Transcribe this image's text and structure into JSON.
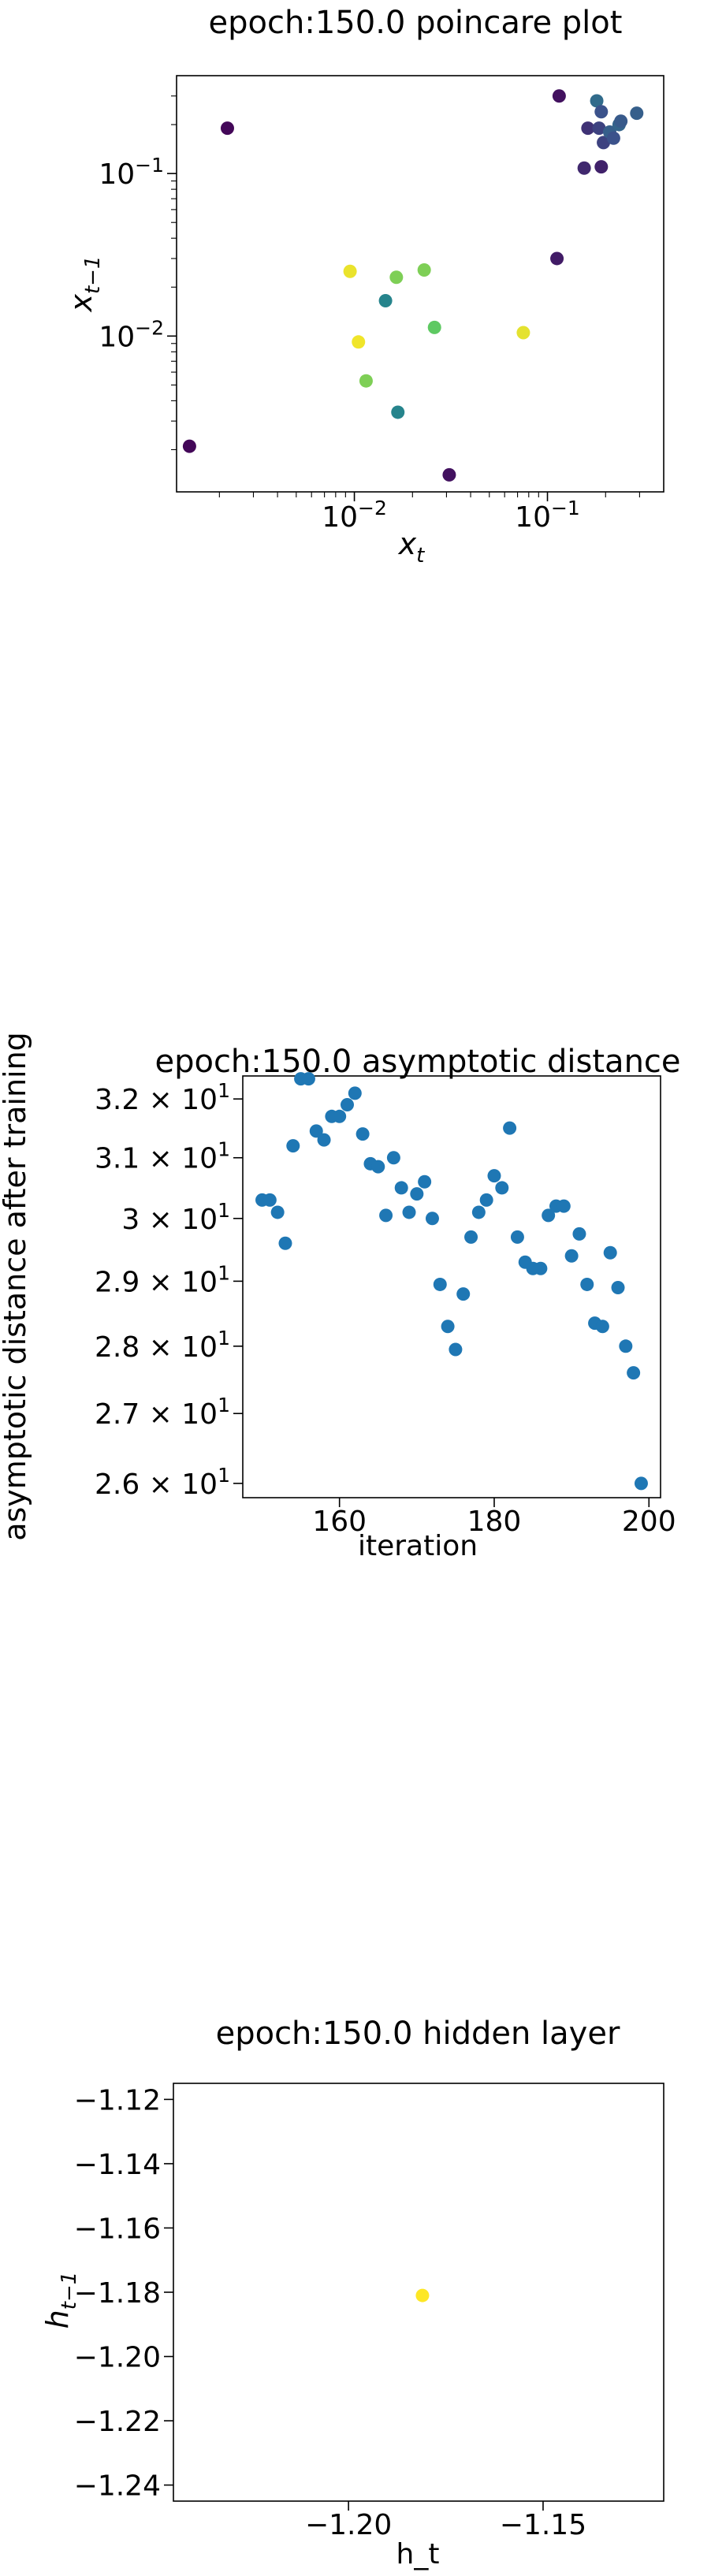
{
  "chart_data": [
    {
      "type": "scatter",
      "title": "epoch:150.0 poincare plot",
      "xlabel": "x",
      "xlabel_sub": "t",
      "ylabel": "x",
      "ylabel_sub": "t−1",
      "xscale": "log",
      "yscale": "log",
      "xlim": [
        0.0012,
        0.4
      ],
      "ylim": [
        0.0011,
        0.4
      ],
      "xticks": [
        {
          "value": 0.01,
          "base": "10",
          "exp": "−2"
        },
        {
          "value": 0.1,
          "base": "10",
          "exp": "−1"
        }
      ],
      "yticks": [
        {
          "value": 0.01,
          "base": "10",
          "exp": "−2"
        },
        {
          "value": 0.1,
          "base": "10",
          "exp": "−1"
        }
      ],
      "colormap": "viridis",
      "points": [
        {
          "x": 0.0014,
          "y": 0.0021,
          "c": 0.02
        },
        {
          "x": 0.0022,
          "y": 0.19,
          "c": 0.02
        },
        {
          "x": 0.0095,
          "y": 0.025,
          "c": 0.97
        },
        {
          "x": 0.0105,
          "y": 0.0092,
          "c": 0.98
        },
        {
          "x": 0.0115,
          "y": 0.0053,
          "c": 0.8
        },
        {
          "x": 0.0145,
          "y": 0.0165,
          "c": 0.45
        },
        {
          "x": 0.0165,
          "y": 0.023,
          "c": 0.8
        },
        {
          "x": 0.0168,
          "y": 0.0034,
          "c": 0.45
        },
        {
          "x": 0.023,
          "y": 0.0255,
          "c": 0.8
        },
        {
          "x": 0.026,
          "y": 0.0113,
          "c": 0.75
        },
        {
          "x": 0.031,
          "y": 0.0014,
          "c": 0.05
        },
        {
          "x": 0.075,
          "y": 0.0105,
          "c": 0.96
        },
        {
          "x": 0.112,
          "y": 0.03,
          "c": 0.08
        },
        {
          "x": 0.115,
          "y": 0.3,
          "c": 0.05
        },
        {
          "x": 0.155,
          "y": 0.108,
          "c": 0.12
        },
        {
          "x": 0.162,
          "y": 0.19,
          "c": 0.15
        },
        {
          "x": 0.18,
          "y": 0.28,
          "c": 0.35
        },
        {
          "x": 0.185,
          "y": 0.19,
          "c": 0.2
        },
        {
          "x": 0.19,
          "y": 0.11,
          "c": 0.1
        },
        {
          "x": 0.19,
          "y": 0.24,
          "c": 0.25
        },
        {
          "x": 0.195,
          "y": 0.155,
          "c": 0.2
        },
        {
          "x": 0.21,
          "y": 0.18,
          "c": 0.3
        },
        {
          "x": 0.22,
          "y": 0.165,
          "c": 0.25
        },
        {
          "x": 0.235,
          "y": 0.2,
          "c": 0.32
        },
        {
          "x": 0.24,
          "y": 0.21,
          "c": 0.28
        },
        {
          "x": 0.29,
          "y": 0.235,
          "c": 0.3
        }
      ]
    },
    {
      "type": "scatter",
      "title": "epoch:150.0 asymptotic distance",
      "xlabel": "iteration",
      "ylabel": "asymptotic distance after training",
      "yscale": "log",
      "xlim": [
        147.5,
        201.5
      ],
      "ylim": [
        25.8,
        32.4
      ],
      "xticks": [
        160,
        180,
        200
      ],
      "yticks": [
        {
          "value": 26,
          "mant": "2.6",
          "base": "10",
          "exp": "1"
        },
        {
          "value": 27,
          "mant": "2.7",
          "base": "10",
          "exp": "1"
        },
        {
          "value": 28,
          "mant": "2.8",
          "base": "10",
          "exp": "1"
        },
        {
          "value": 29,
          "mant": "2.9",
          "base": "10",
          "exp": "1"
        },
        {
          "value": 30,
          "mant": "3",
          "base": "10",
          "exp": "1"
        },
        {
          "value": 31,
          "mant": "3.1",
          "base": "10",
          "exp": "1"
        },
        {
          "value": 32,
          "mant": "3.2",
          "base": "10",
          "exp": "1"
        }
      ],
      "color": "#1f77b4",
      "x": [
        150,
        151,
        152,
        153,
        154,
        155,
        156,
        157,
        158,
        159,
        160,
        161,
        162,
        163,
        164,
        165,
        166,
        167,
        168,
        169,
        170,
        171,
        172,
        173,
        174,
        175,
        176,
        177,
        178,
        179,
        180,
        181,
        182,
        183,
        184,
        185,
        186,
        187,
        188,
        189,
        190,
        191,
        192,
        193,
        194,
        195,
        196,
        197,
        198,
        199
      ],
      "y": [
        30.3,
        30.3,
        30.1,
        29.6,
        31.2,
        32.35,
        32.35,
        31.45,
        31.3,
        31.7,
        31.7,
        31.9,
        32.1,
        31.4,
        30.9,
        30.85,
        30.05,
        31.0,
        30.5,
        30.1,
        30.4,
        30.6,
        30.0,
        28.95,
        28.3,
        27.95,
        28.8,
        29.7,
        30.1,
        30.3,
        30.7,
        30.5,
        31.5,
        29.7,
        29.3,
        29.2,
        29.2,
        30.05,
        30.2,
        30.2,
        29.4,
        29.75,
        28.95,
        28.35,
        28.3,
        29.45,
        28.9,
        28.0,
        27.6,
        26.0
      ]
    },
    {
      "type": "scatter",
      "title": "epoch:150.0 hidden layer",
      "xlabel": "h_t",
      "ylabel": "h",
      "ylabel_sub": "t−1",
      "xlim": [
        -1.245,
        -1.119
      ],
      "ylim": [
        -1.245,
        -1.115
      ],
      "xticks": [
        {
          "value": -1.2,
          "label": "−1.20"
        },
        {
          "value": -1.15,
          "label": "−1.15"
        }
      ],
      "yticks": [
        {
          "value": -1.12,
          "label": "−1.12"
        },
        {
          "value": -1.14,
          "label": "−1.14"
        },
        {
          "value": -1.16,
          "label": "−1.16"
        },
        {
          "value": -1.18,
          "label": "−1.18"
        },
        {
          "value": -1.2,
          "label": "−1.20"
        },
        {
          "value": -1.22,
          "label": "−1.22"
        },
        {
          "value": -1.24,
          "label": "−1.24"
        }
      ],
      "color": "#fde725",
      "points": [
        {
          "x": -1.181,
          "y": -1.181
        }
      ]
    }
  ]
}
